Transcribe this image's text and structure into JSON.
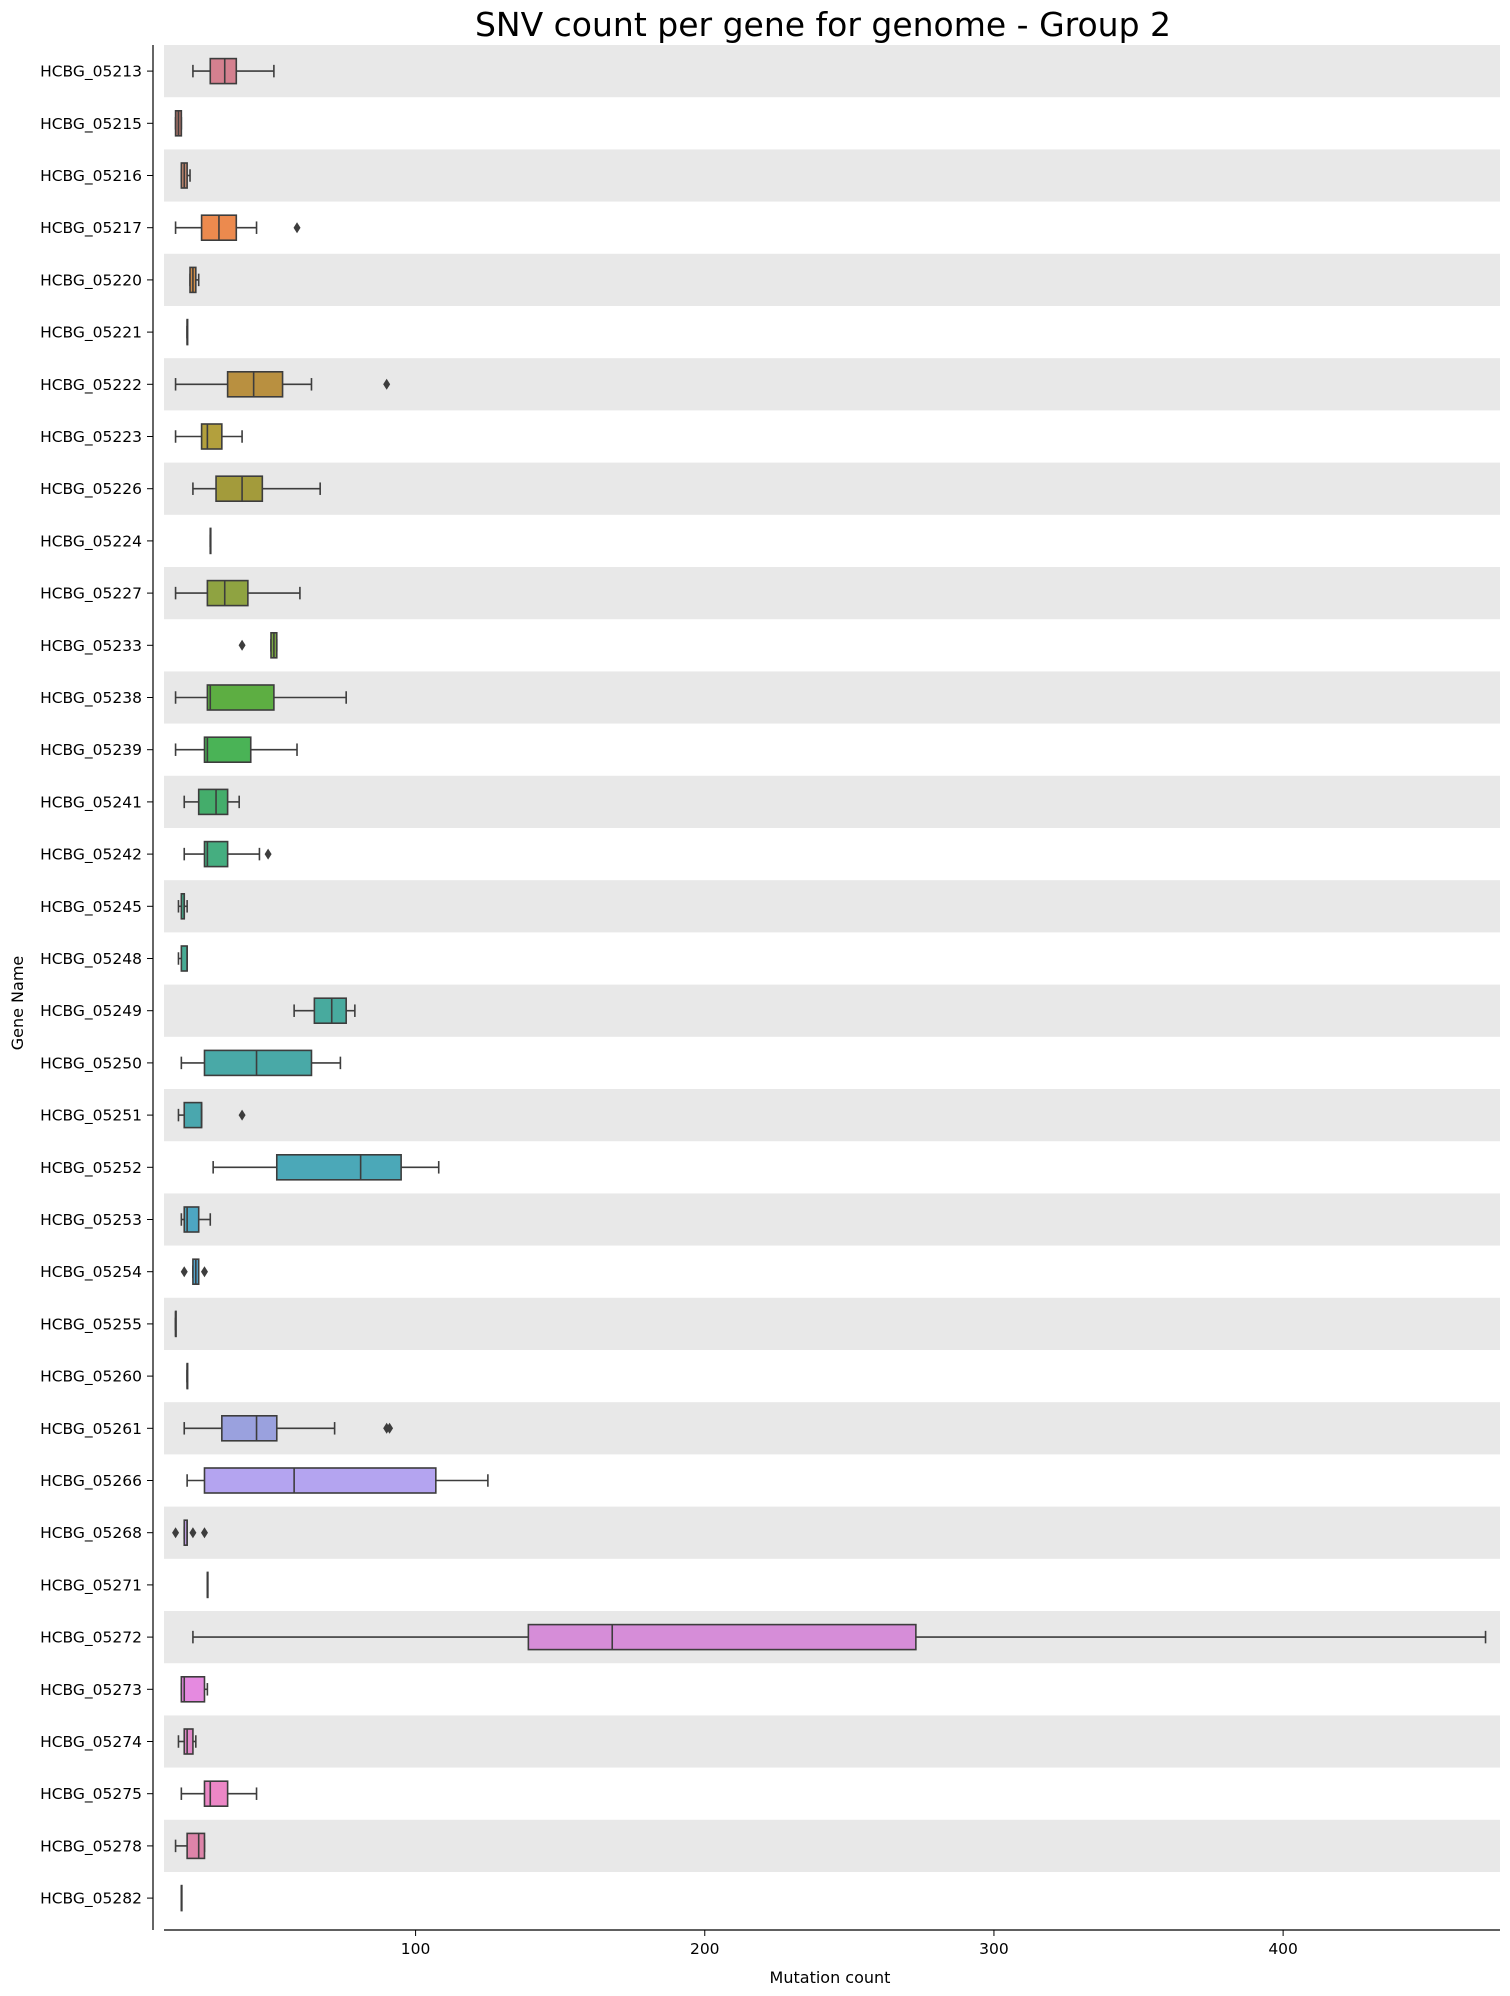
{
  "chart_data": {
    "type": "box",
    "orientation": "horizontal",
    "title": "SNV count per gene for genome - Group 2",
    "xlabel": "Mutation count",
    "ylabel": "Gene Name",
    "xlim": [
      13,
      475
    ],
    "xticks": [
      100,
      200,
      300,
      400
    ],
    "grid": false,
    "row_stripes": true,
    "series": [
      {
        "gene": "HCBG_05213",
        "color": "#d4808f",
        "whislo": 23,
        "q1": 29,
        "med": 34,
        "q3": 38,
        "whishi": 51,
        "fliers": []
      },
      {
        "gene": "HCBG_05215",
        "color": "#b0756a",
        "whislo": 17,
        "q1": 17,
        "med": 18,
        "q3": 19,
        "whishi": 19,
        "fliers": []
      },
      {
        "gene": "HCBG_05216",
        "color": "#c48a71",
        "whislo": 19,
        "q1": 19,
        "med": 20,
        "q3": 21,
        "whishi": 22,
        "fliers": []
      },
      {
        "gene": "HCBG_05217",
        "color": "#ec8a4e",
        "whislo": 17,
        "q1": 26,
        "med": 32,
        "q3": 38,
        "whishi": 45,
        "fliers": [
          59
        ]
      },
      {
        "gene": "HCBG_05220",
        "color": "#cf8e4b",
        "whislo": 22,
        "q1": 22,
        "med": 23,
        "q3": 24,
        "whishi": 25,
        "fliers": []
      },
      {
        "gene": "HCBG_05221",
        "color": "#c0913f",
        "whislo": 21,
        "q1": 21,
        "med": 21,
        "q3": 21,
        "whishi": 21,
        "fliers": []
      },
      {
        "gene": "HCBG_05222",
        "color": "#b99040",
        "whislo": 17,
        "q1": 35,
        "med": 44,
        "q3": 54,
        "whishi": 64,
        "fliers": [
          90
        ]
      },
      {
        "gene": "HCBG_05223",
        "color": "#b3a03d",
        "whislo": 17,
        "q1": 26,
        "med": 28,
        "q3": 33,
        "whishi": 40,
        "fliers": []
      },
      {
        "gene": "HCBG_05226",
        "color": "#a39b3b",
        "whislo": 23,
        "q1": 31,
        "med": 40,
        "q3": 47,
        "whishi": 67,
        "fliers": []
      },
      {
        "gene": "HCBG_05224",
        "color": "#999a3c",
        "whislo": 29,
        "q1": 29,
        "med": 29,
        "q3": 29,
        "whishi": 29,
        "fliers": []
      },
      {
        "gene": "HCBG_05227",
        "color": "#8fa341",
        "whislo": 17,
        "q1": 28,
        "med": 34,
        "q3": 42,
        "whishi": 60,
        "fliers": []
      },
      {
        "gene": "HCBG_05233",
        "color": "#7aa743",
        "whislo": 50,
        "q1": 50,
        "med": 51,
        "q3": 52,
        "whishi": 52,
        "fliers": [
          40
        ]
      },
      {
        "gene": "HCBG_05238",
        "color": "#5dae42",
        "whislo": 17,
        "q1": 28,
        "med": 29,
        "q3": 51,
        "whishi": 76,
        "fliers": []
      },
      {
        "gene": "HCBG_05239",
        "color": "#4ab356",
        "whislo": 17,
        "q1": 27,
        "med": 28,
        "q3": 43,
        "whishi": 59,
        "fliers": []
      },
      {
        "gene": "HCBG_05241",
        "color": "#44ad6b",
        "whislo": 20,
        "q1": 25,
        "med": 31,
        "q3": 35,
        "whishi": 39,
        "fliers": []
      },
      {
        "gene": "HCBG_05242",
        "color": "#45ae80",
        "whislo": 20,
        "q1": 27,
        "med": 28,
        "q3": 35,
        "whishi": 46,
        "fliers": [
          49
        ]
      },
      {
        "gene": "HCBG_05245",
        "color": "#46ac8b",
        "whislo": 18,
        "q1": 19,
        "med": 20,
        "q3": 20,
        "whishi": 21,
        "fliers": []
      },
      {
        "gene": "HCBG_05248",
        "color": "#47ab94",
        "whislo": 18,
        "q1": 19,
        "med": 21,
        "q3": 21,
        "whishi": 21,
        "fliers": []
      },
      {
        "gene": "HCBG_05249",
        "color": "#48aa9e",
        "whislo": 58,
        "q1": 65,
        "med": 71,
        "q3": 76,
        "whishi": 79,
        "fliers": []
      },
      {
        "gene": "HCBG_05250",
        "color": "#49a9a7",
        "whislo": 19,
        "q1": 27,
        "med": 45,
        "q3": 64,
        "whishi": 74,
        "fliers": []
      },
      {
        "gene": "HCBG_05251",
        "color": "#4aa7ae",
        "whislo": 18,
        "q1": 20,
        "med": 26,
        "q3": 26,
        "whishi": 26,
        "fliers": [
          40
        ]
      },
      {
        "gene": "HCBG_05252",
        "color": "#4ba8b8",
        "whislo": 30,
        "q1": 52,
        "med": 81,
        "q3": 95,
        "whishi": 108,
        "fliers": []
      },
      {
        "gene": "HCBG_05253",
        "color": "#4da6c2",
        "whislo": 19,
        "q1": 20,
        "med": 21,
        "q3": 25,
        "whishi": 29,
        "fliers": []
      },
      {
        "gene": "HCBG_05254",
        "color": "#51a3cc",
        "whislo": 23,
        "q1": 23,
        "med": 24,
        "q3": 25,
        "whishi": 25,
        "fliers": [
          20,
          27
        ]
      },
      {
        "gene": "HCBG_05255",
        "color": "#5a9ed6",
        "whislo": 17,
        "q1": 17,
        "med": 17,
        "q3": 17,
        "whishi": 17,
        "fliers": []
      },
      {
        "gene": "HCBG_05260",
        "color": "#6a99de",
        "whislo": 21,
        "q1": 21,
        "med": 21,
        "q3": 21,
        "whishi": 21,
        "fliers": []
      },
      {
        "gene": "HCBG_05261",
        "color": "#9aa1de",
        "whislo": 20,
        "q1": 33,
        "med": 45,
        "q3": 52,
        "whishi": 72,
        "fliers": [
          90,
          91
        ]
      },
      {
        "gene": "HCBG_05266",
        "color": "#b4a4f0",
        "whislo": 21,
        "q1": 27,
        "med": 58,
        "q3": 107,
        "whishi": 125,
        "fliers": []
      },
      {
        "gene": "HCBG_05268",
        "color": "#c29de6",
        "whislo": 20,
        "q1": 20,
        "med": 21,
        "q3": 21,
        "whishi": 21,
        "fliers": [
          17,
          23,
          27
        ]
      },
      {
        "gene": "HCBG_05271",
        "color": "#cc95e0",
        "whislo": 28,
        "q1": 28,
        "med": 28,
        "q3": 28,
        "whishi": 28,
        "fliers": []
      },
      {
        "gene": "HCBG_05272",
        "color": "#d68dd8",
        "whislo": 23,
        "q1": 139,
        "med": 168,
        "q3": 273,
        "whishi": 470,
        "fliers": []
      },
      {
        "gene": "HCBG_05273",
        "color": "#e58ae0",
        "whislo": 19,
        "q1": 19,
        "med": 20,
        "q3": 27,
        "whishi": 28,
        "fliers": []
      },
      {
        "gene": "HCBG_05274",
        "color": "#e288c9",
        "whislo": 18,
        "q1": 20,
        "med": 21,
        "q3": 23,
        "whishi": 24,
        "fliers": []
      },
      {
        "gene": "HCBG_05275",
        "color": "#ec87c6",
        "whislo": 19,
        "q1": 27,
        "med": 29,
        "q3": 35,
        "whishi": 45,
        "fliers": []
      },
      {
        "gene": "HCBG_05278",
        "color": "#dd84a9",
        "whislo": 17,
        "q1": 21,
        "med": 25,
        "q3": 27,
        "whishi": 27,
        "fliers": []
      },
      {
        "gene": "HCBG_05282",
        "color": "#d88596",
        "whislo": 19,
        "q1": 19,
        "med": 19,
        "q3": 19,
        "whishi": 19,
        "fliers": []
      }
    ]
  }
}
